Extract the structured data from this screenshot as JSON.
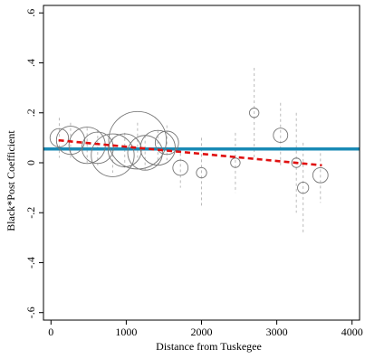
{
  "chart_data": {
    "type": "scatter",
    "xlabel": "Distance from Tuskegee",
    "ylabel": "Black*Post Coefficient",
    "xlim": [
      -100,
      4100
    ],
    "ylim": [
      -0.63,
      0.63
    ],
    "x_ticks": [
      0,
      1000,
      2000,
      3000,
      4000
    ],
    "y_ticks": [
      -0.6,
      -0.4,
      -0.2,
      0,
      0.2,
      0.4,
      0.6
    ],
    "x_tick_labels": [
      "0",
      "1000",
      "2000",
      "3000",
      "4000"
    ],
    "y_tick_labels": [
      "-.6",
      "-.4",
      "-.2",
      "0",
      ".2",
      ".4",
      ".6"
    ],
    "grid": false,
    "colors": {
      "pooled_line": "#1a8ab5",
      "fitted_trend": "#e01010",
      "markers": "#777777",
      "ci_lines": "#bbbbbb"
    },
    "points": [
      {
        "x": 110,
        "y": 0.1,
        "size": 0.8,
        "ci": [
          0.02,
          0.18
        ]
      },
      {
        "x": 260,
        "y": 0.09,
        "size": 1.4,
        "ci": [
          0.02,
          0.16
        ]
      },
      {
        "x": 480,
        "y": 0.07,
        "size": 1.9,
        "ci": [
          0.0,
          0.14
        ]
      },
      {
        "x": 620,
        "y": 0.06,
        "size": 1.6,
        "ci": [
          -0.01,
          0.13
        ]
      },
      {
        "x": 820,
        "y": 0.03,
        "size": 2.3,
        "ci": [
          -0.04,
          0.1
        ]
      },
      {
        "x": 980,
        "y": 0.05,
        "size": 1.7,
        "ci": [
          -0.02,
          0.12
        ]
      },
      {
        "x": 1150,
        "y": 0.09,
        "size": 3.2,
        "ci": [
          0.02,
          0.16
        ]
      },
      {
        "x": 1250,
        "y": 0.04,
        "size": 1.8,
        "ci": [
          -0.03,
          0.11
        ]
      },
      {
        "x": 1420,
        "y": 0.06,
        "size": 1.8,
        "ci": [
          -0.01,
          0.13
        ]
      },
      {
        "x": 1540,
        "y": 0.08,
        "size": 1.1,
        "ci": [
          0.01,
          0.15
        ]
      },
      {
        "x": 1720,
        "y": -0.02,
        "size": 0.6,
        "ci": [
          -0.1,
          0.06
        ]
      },
      {
        "x": 2000,
        "y": -0.04,
        "size": 0.3,
        "ci": [
          -0.18,
          0.1
        ]
      },
      {
        "x": 2450,
        "y": 0.0,
        "size": 0.25,
        "ci": [
          -0.12,
          0.12
        ]
      },
      {
        "x": 2700,
        "y": 0.2,
        "size": 0.25,
        "ci": [
          0.02,
          0.38
        ]
      },
      {
        "x": 3050,
        "y": 0.11,
        "size": 0.55,
        "ci": [
          -0.02,
          0.24
        ]
      },
      {
        "x": 3260,
        "y": 0.0,
        "size": 0.25,
        "ci": [
          -0.2,
          0.2
        ]
      },
      {
        "x": 3350,
        "y": -0.1,
        "size": 0.35,
        "ci": [
          -0.28,
          0.08
        ]
      },
      {
        "x": 3580,
        "y": -0.05,
        "size": 0.6,
        "ci": [
          -0.16,
          0.06
        ]
      }
    ],
    "pooled_estimate": 0.055,
    "fitted_trend": {
      "x": [
        100,
        3600
      ],
      "y": [
        0.09,
        -0.01
      ]
    }
  }
}
